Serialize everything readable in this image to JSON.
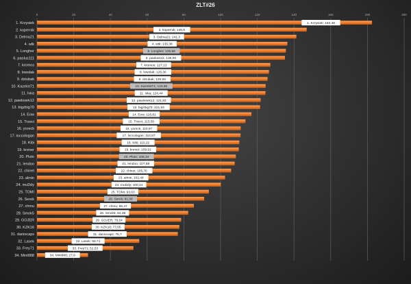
{
  "chart_data": {
    "type": "bar",
    "orientation": "horizontal",
    "title": "ZLT#26",
    "xlabel": "",
    "ylabel": "",
    "xlim": [
      0,
      200
    ],
    "xticks": [
      0,
      20,
      40,
      60,
      80,
      100,
      120,
      140,
      160,
      180,
      200
    ],
    "grid": true,
    "legend": "none",
    "colors": {
      "bar": "#f07c2a",
      "label_bg": "#ffffff",
      "label_bg_highlight": "#bdbdbd",
      "text": "#e0e0e0"
    },
    "categories": [
      "1. Krzysiek",
      "2. kopernik",
      "3. Delma21",
      "4. wtk",
      "5. Longher",
      "6. paolus111",
      "7. kromos",
      "8. lowolak",
      "9. dziubak",
      "10. Kazelot71",
      "11. Ivka",
      "12. pawlosek12",
      "13. bigzbig70",
      "14. Eow",
      "15. Trzeci",
      "16. yoreck",
      "17. loccologan",
      "18. Kibi",
      "19. krener",
      "20. Pluto",
      "21. lendoo",
      "22. chinet",
      "23. almin",
      "24. muDdy",
      "25. TOMI",
      "26. Serek",
      "27. chmu",
      "28. Smok5",
      "29. GOJER",
      "30. KZK16",
      "31. daniocaps",
      "32. Lasek",
      "33. Frey71",
      "34. Mint888"
    ],
    "values": [
      182.48,
      146.9,
      141.3,
      136.38,
      135.56,
      135.06,
      127.13,
      126.36,
      125.59,
      124.55,
      124.44,
      121.83,
      121.53,
      116.81,
      113.56,
      110.97,
      110.87,
      110.22,
      109.91,
      108.34,
      107.68,
      105.76,
      102.44,
      100.14,
      93.63,
      91.08,
      85.47,
      82.38,
      78.54,
      77.55,
      76.7,
      55.71,
      52.53,
      27.8
    ],
    "data_labels": [
      "1. Krzysiek; 182,48",
      "2. kopernik; 146,9",
      "3. Delma21; 141,3",
      "4. wtk; 136,38",
      "5. Longher; 135,56",
      "6. paolus111; 135,06",
      "7. kromos; 127,13",
      "8. lowolak; 126,36",
      "9. dziubak; 125,59",
      "10. Kazelot71; 124,55",
      "11. Ivka; 124,44",
      "12. pawlosek12; 121,83",
      "13. bigzbig70; 121,53",
      "14. Eow; 116,81",
      "15. Trzeci; 113,56",
      "16. yoreck; 110,97",
      "17. loccologan; 110,87",
      "18. Kibi; 110,22",
      "19. krener; 109,91",
      "20. Pluto; 108,34",
      "21. lendoo; 107,68",
      "22. chinet; 105,76",
      "23. almin; 102,44",
      "24. muDdy; 100,14",
      "25. TOMI; 93,63",
      "26. Serek; 91,08",
      "27. chmu; 85,47",
      "28. Smok5; 82,38",
      "29. GOJER; 78,54",
      "30. KZK16; 77,55",
      "31. daniocaps; 76,7",
      "32. Lasek; 55,71",
      "33. Frey71; 52,53",
      "34. Mint888; 27,8"
    ],
    "highlighted_labels": [
      5,
      10,
      20,
      26
    ]
  }
}
